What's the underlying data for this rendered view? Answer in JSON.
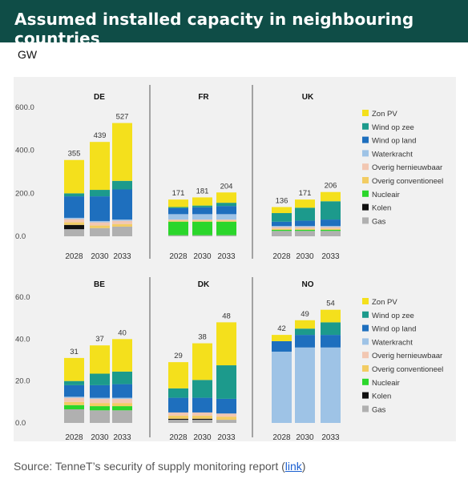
{
  "header": {
    "title": "Assumed installed capacity in neighbouring countries"
  },
  "unit": "GW",
  "source": {
    "prefix": "Source: TenneT’s security of supply monitoring report (",
    "link": "link",
    "suffix": ")"
  },
  "colors": {
    "Zon PV": "#f4e01c",
    "Wind op zee": "#1c9a8c",
    "Wind op land": "#1e6fbe",
    "Waterkracht": "#9ec3e6",
    "Overig hernieuwbaar": "#f2c7b2",
    "Overig conventioneel": "#f2cc63",
    "Nucleair": "#2bd62b",
    "Kolen": "#111111",
    "Gas": "#b0b0b0"
  },
  "chart_data": [
    {
      "type": "bar",
      "stacked": true,
      "row": 0,
      "legend": [
        "Zon PV",
        "Wind op zee",
        "Wind op land",
        "Waterkracht",
        "Overig hernieuwbaar",
        "Overig conventioneel",
        "Nucleair",
        "Kolen",
        "Gas"
      ],
      "yticks": [
        "600.0",
        "400.0",
        "200.0",
        "0.0"
      ],
      "ylim": [
        0,
        600
      ],
      "countries": [
        {
          "name": "DE",
          "categories": [
            "2028",
            "2030",
            "2033"
          ],
          "totals": [
            "355",
            "439",
            "527"
          ],
          "series": [
            {
              "name": "Gas",
              "values": [
                33,
                38,
                45
              ]
            },
            {
              "name": "Kolen",
              "values": [
                20,
                0,
                0
              ]
            },
            {
              "name": "Nucleair",
              "values": [
                0,
                0,
                0
              ]
            },
            {
              "name": "Overig conventioneel",
              "values": [
                12,
                12,
                12
              ]
            },
            {
              "name": "Overig hernieuwbaar",
              "values": [
                15,
                15,
                15
              ]
            },
            {
              "name": "Waterkracht",
              "values": [
                6,
                6,
                6
              ]
            },
            {
              "name": "Wind op land",
              "values": [
                100,
                115,
                140
              ]
            },
            {
              "name": "Wind op zee",
              "values": [
                14,
                30,
                40
              ]
            },
            {
              "name": "Zon PV",
              "values": [
                155,
                223,
                269
              ]
            }
          ]
        },
        {
          "name": "FR",
          "categories": [
            "2028",
            "2030",
            "2033"
          ],
          "totals": [
            "171",
            "181",
            "204"
          ],
          "series": [
            {
              "name": "Gas",
              "values": [
                5,
                5,
                5
              ]
            },
            {
              "name": "Kolen",
              "values": [
                0,
                0,
                0
              ]
            },
            {
              "name": "Nucleair",
              "values": [
                63,
                63,
                63
              ]
            },
            {
              "name": "Overig conventioneel",
              "values": [
                5,
                5,
                5
              ]
            },
            {
              "name": "Overig hernieuwbaar",
              "values": [
                5,
                5,
                5
              ]
            },
            {
              "name": "Waterkracht",
              "values": [
                25,
                25,
                25
              ]
            },
            {
              "name": "Wind op land",
              "values": [
                28,
                32,
                38
              ]
            },
            {
              "name": "Wind op zee",
              "values": [
                5,
                8,
                15
              ]
            },
            {
              "name": "Zon PV",
              "values": [
                35,
                38,
                48
              ]
            }
          ]
        },
        {
          "name": "UK",
          "categories": [
            "2028",
            "2030",
            "2033"
          ],
          "totals": [
            "136",
            "171",
            "206"
          ],
          "series": [
            {
              "name": "Gas",
              "values": [
                25,
                25,
                25
              ]
            },
            {
              "name": "Kolen",
              "values": [
                0,
                0,
                0
              ]
            },
            {
              "name": "Nucleair",
              "values": [
                5,
                5,
                5
              ]
            },
            {
              "name": "Overig conventioneel",
              "values": [
                5,
                5,
                5
              ]
            },
            {
              "name": "Overig hernieuwbaar",
              "values": [
                8,
                8,
                8
              ]
            },
            {
              "name": "Waterkracht",
              "values": [
                5,
                5,
                5
              ]
            },
            {
              "name": "Wind op land",
              "values": [
                20,
                25,
                30
              ]
            },
            {
              "name": "Wind op zee",
              "values": [
                40,
                60,
                85
              ]
            },
            {
              "name": "Zon PV",
              "values": [
                28,
                38,
                43
              ]
            }
          ]
        }
      ]
    },
    {
      "type": "bar",
      "stacked": true,
      "row": 1,
      "legend": [
        "Zon PV",
        "Wind op zee",
        "Wind op land",
        "Waterkracht",
        "Overig hernieuwbaar",
        "Overig conventioneel",
        "Nucleair",
        "Kolen",
        "Gas"
      ],
      "yticks": [
        "60.0",
        "40.0",
        "20.0",
        "0.0"
      ],
      "ylim": [
        0,
        60
      ],
      "countries": [
        {
          "name": "BE",
          "categories": [
            "2028",
            "2030",
            "2033"
          ],
          "totals": [
            "31",
            "37",
            "40"
          ],
          "series": [
            {
              "name": "Gas",
              "values": [
                6.5,
                6,
                6
              ]
            },
            {
              "name": "Kolen",
              "values": [
                0,
                0,
                0
              ]
            },
            {
              "name": "Nucleair",
              "values": [
                2,
                2,
                2
              ]
            },
            {
              "name": "Overig conventioneel",
              "values": [
                1.5,
                1.5,
                1.5
              ]
            },
            {
              "name": "Overig hernieuwbaar",
              "values": [
                2,
                2,
                2
              ]
            },
            {
              "name": "Waterkracht",
              "values": [
                0.5,
                0.5,
                0.5
              ]
            },
            {
              "name": "Wind op land",
              "values": [
                5.5,
                6,
                6.5
              ]
            },
            {
              "name": "Wind op zee",
              "values": [
                2,
                5.5,
                6
              ]
            },
            {
              "name": "Zon PV",
              "values": [
                11,
                13.5,
                15.5
              ]
            }
          ]
        },
        {
          "name": "DK",
          "categories": [
            "2028",
            "2030",
            "2033"
          ],
          "totals": [
            "29",
            "38",
            "48"
          ],
          "series": [
            {
              "name": "Gas",
              "values": [
                1.5,
                1.5,
                1.5
              ]
            },
            {
              "name": "Kolen",
              "values": [
                0.5,
                0.5,
                0
              ]
            },
            {
              "name": "Nucleair",
              "values": [
                0,
                0,
                0
              ]
            },
            {
              "name": "Overig conventioneel",
              "values": [
                1.5,
                1.5,
                1.5
              ]
            },
            {
              "name": "Overig hernieuwbaar",
              "values": [
                1.5,
                1.5,
                1.5
              ]
            },
            {
              "name": "Waterkracht",
              "values": [
                0,
                0,
                0
              ]
            },
            {
              "name": "Wind op land",
              "values": [
                7,
                7,
                7
              ]
            },
            {
              "name": "Wind op zee",
              "values": [
                4.5,
                8.5,
                16
              ]
            },
            {
              "name": "Zon PV",
              "values": [
                12.5,
                17.5,
                20.5
              ]
            }
          ]
        },
        {
          "name": "NO",
          "categories": [
            "2028",
            "2030",
            "2033"
          ],
          "totals": [
            "42",
            "49",
            "54"
          ],
          "series": [
            {
              "name": "Gas",
              "values": [
                0,
                0,
                0
              ]
            },
            {
              "name": "Kolen",
              "values": [
                0,
                0,
                0
              ]
            },
            {
              "name": "Nucleair",
              "values": [
                0,
                0,
                0
              ]
            },
            {
              "name": "Overig conventioneel",
              "values": [
                0,
                0,
                0
              ]
            },
            {
              "name": "Overig hernieuwbaar",
              "values": [
                0,
                0,
                0
              ]
            },
            {
              "name": "Waterkracht",
              "values": [
                34,
                36,
                36
              ]
            },
            {
              "name": "Wind op land",
              "values": [
                5,
                6,
                6
              ]
            },
            {
              "name": "Wind op zee",
              "values": [
                0,
                3,
                6
              ]
            },
            {
              "name": "Zon PV",
              "values": [
                3,
                4,
                6
              ]
            }
          ]
        }
      ]
    }
  ]
}
